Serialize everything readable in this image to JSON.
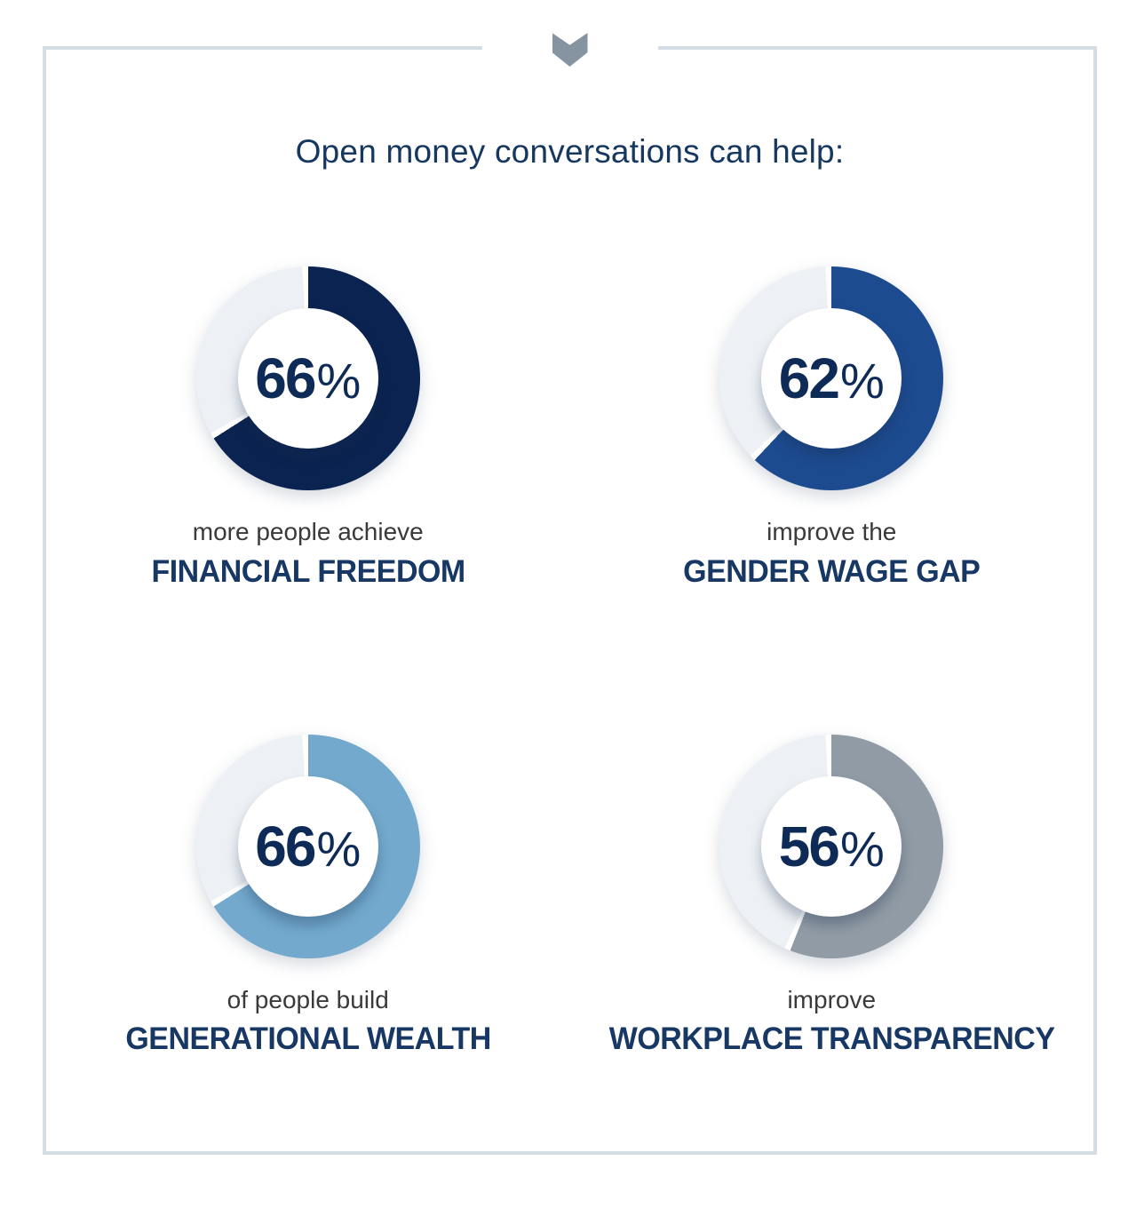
{
  "header": {
    "title": "Open money conversations can help:"
  },
  "icons": {
    "chevron": "chevron-down-icon"
  },
  "colors": {
    "frame_border": "#d5dee5",
    "chevron": "#8694a2",
    "title_text": "#163860",
    "value_text": "#0e2a57",
    "caption_bold_text": "#173764",
    "caption_light_text": "#3a3a3a",
    "donut_remainder": "#edf1f5",
    "slice_gap": "#ffffff"
  },
  "chart_data": {
    "type": "pie",
    "subtype": "donut",
    "title": "Open money conversations can help:",
    "legend_position": "none",
    "start_angle_deg": 0,
    "direction": "clockwise",
    "remainder_color": "#edf1f5",
    "donuts": [
      {
        "value": 66,
        "unit": "%",
        "line1": "more people achieve",
        "line2": "FINANCIAL FREEDOM",
        "color": "#0b2350"
      },
      {
        "value": 62,
        "unit": "%",
        "line1": "improve the",
        "line2": "GENDER WAGE GAP",
        "color": "#1d4b90"
      },
      {
        "value": 66,
        "unit": "%",
        "line1": "of people build",
        "line2": "GENERATIONAL WEALTH",
        "color": "#72a9cd"
      },
      {
        "value": 56,
        "unit": "%",
        "line1": "improve",
        "line2": "WORKPLACE TRANSPARENCY",
        "color": "#919ba5"
      }
    ]
  }
}
